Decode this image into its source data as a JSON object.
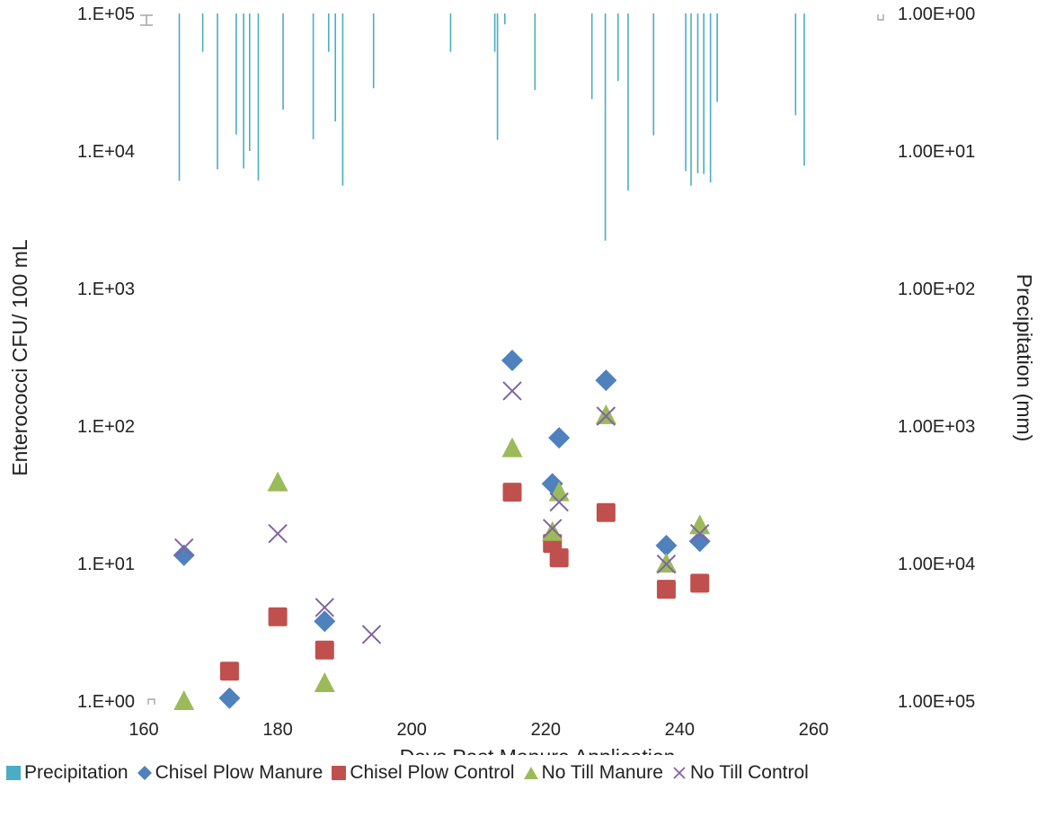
{
  "chart_data": {
    "type": "scatter",
    "xlabel": "Days Past Manure Application",
    "ylabel": "Enterococci CFU/ 100 mL",
    "y2label": "Precipitation (mm)",
    "xlim": [
      160,
      270
    ],
    "xticks": [
      160,
      180,
      200,
      220,
      240,
      260
    ],
    "ylim": [
      1,
      100000
    ],
    "yscale": "log",
    "yticks": [
      1,
      10,
      100,
      1000,
      10000,
      100000
    ],
    "yticklabels": [
      "1.E+00",
      "1.E+01",
      "1.E+02",
      "1.E+03",
      "1.E+04",
      "1.E+05"
    ],
    "y2lim": [
      1,
      100000
    ],
    "y2scale": "log",
    "y2inverted": true,
    "y2ticks": [
      1,
      10,
      100,
      1000,
      10000,
      100000
    ],
    "y2ticklabels": [
      "1.00E+00",
      "1.00E+01",
      "1.00E+02",
      "1.00E+03",
      "1.00E+04",
      "1.00E+05"
    ],
    "grid": false,
    "legend": "bottom",
    "series": [
      {
        "name": "Precipitation",
        "type": "bar",
        "axis": "y2",
        "color": "#4bacc6",
        "x": [
          165.3,
          168.8,
          171,
          173.8,
          174.9,
          175.8,
          177.1,
          180.8,
          185.3,
          187.6,
          188.6,
          189.7,
          194.3,
          205.8,
          212.4,
          212.8,
          213.9,
          218.4,
          226.9,
          228.9,
          230.8,
          232.3,
          236.1,
          240.9,
          241.7,
          242.7,
          243.6,
          244.6,
          245.6,
          257.3,
          258.6
        ],
        "values": [
          16.5,
          1.9,
          13.6,
          7.6,
          13.4,
          10,
          16.4,
          5,
          8.2,
          1.9,
          6.1,
          17.9,
          3.5,
          1.9,
          1.9,
          8.3,
          1.2,
          3.6,
          4.2,
          44.9,
          3.1,
          19.4,
          7.7,
          14,
          17.9,
          14.5,
          14.7,
          16.9,
          4.4,
          5.5,
          12.8
        ]
      },
      {
        "name": "Chisel Plow Manure",
        "marker": "diamond",
        "color": "#4f81bd",
        "x": [
          166,
          172.8,
          187,
          215,
          221,
          222,
          229,
          238,
          243
        ],
        "values": [
          11.5,
          1.05,
          3.8,
          300,
          38,
          82,
          215,
          13.5,
          14.5
        ]
      },
      {
        "name": "Chisel Plow Control",
        "marker": "square",
        "color": "#c0504d",
        "x": [
          172.8,
          180,
          187,
          215,
          221,
          222,
          229,
          238,
          243
        ],
        "values": [
          1.65,
          4.1,
          2.35,
          33,
          14,
          11,
          23.5,
          6.5,
          7.2
        ]
      },
      {
        "name": "No Till Manure",
        "marker": "triangle",
        "color": "#9bbb59",
        "x": [
          166,
          180,
          187,
          215,
          221,
          222,
          229,
          238,
          243
        ],
        "values": [
          1,
          39,
          1.35,
          69,
          17,
          33,
          120,
          10,
          19
        ]
      },
      {
        "name": "No Till Control",
        "marker": "x",
        "color": "#8064a2",
        "x": [
          166,
          180,
          187,
          194,
          215,
          221,
          222,
          229,
          238,
          243
        ],
        "values": [
          13,
          16.5,
          4.8,
          3.05,
          180,
          18,
          28,
          118,
          9.9,
          16.5
        ]
      }
    ]
  }
}
